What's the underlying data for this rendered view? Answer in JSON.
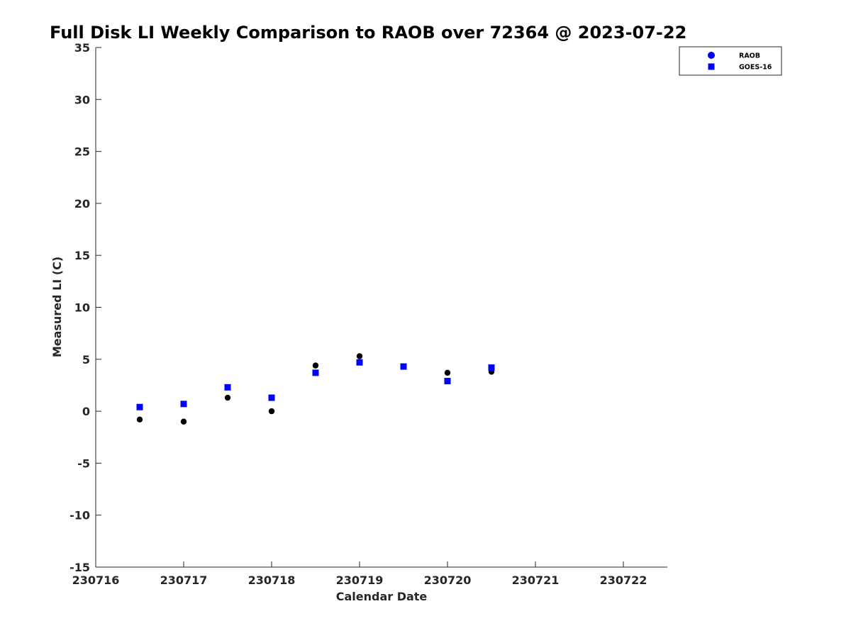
{
  "chart_data": {
    "type": "scatter",
    "title": "Full Disk LI Weekly Comparison to RAOB over 72364 @ 2023-07-22",
    "xlabel": "Calendar Date",
    "ylabel": "Measured LI (C)",
    "xlim": [
      230716,
      230722.5
    ],
    "ylim": [
      -15,
      35
    ],
    "xticks": [
      230716,
      230717,
      230718,
      230719,
      230720,
      230721,
      230722
    ],
    "xtick_labels": [
      "230716",
      "230717",
      "230718",
      "230719",
      "230720",
      "230721",
      "230722"
    ],
    "yticks": [
      -15,
      -10,
      -5,
      0,
      5,
      10,
      15,
      20,
      25,
      30,
      35
    ],
    "ytick_labels": [
      "-15",
      "-10",
      "-5",
      "0",
      "5",
      "10",
      "15",
      "20",
      "25",
      "30",
      "35"
    ],
    "grid": false,
    "legend_position": "top-right outside",
    "series": [
      {
        "name": "RAOB",
        "marker": "circle",
        "color": "#000000",
        "legend_color": "#0000ff",
        "x": [
          230716.5,
          230717,
          230717.5,
          230718,
          230718.5,
          230719,
          230719.5,
          230720,
          230720.5
        ],
        "y": [
          -0.8,
          -1.0,
          1.3,
          0.0,
          4.4,
          5.3,
          4.3,
          3.7,
          3.8
        ]
      },
      {
        "name": "GOES-16",
        "marker": "square",
        "color": "#0000ff",
        "legend_color": "#0000ff",
        "x": [
          230716.5,
          230717,
          230717.5,
          230718,
          230718.5,
          230719,
          230719.5,
          230720,
          230720.5
        ],
        "y": [
          0.4,
          0.7,
          2.3,
          1.3,
          3.7,
          4.7,
          4.3,
          2.9,
          4.2
        ]
      }
    ]
  }
}
